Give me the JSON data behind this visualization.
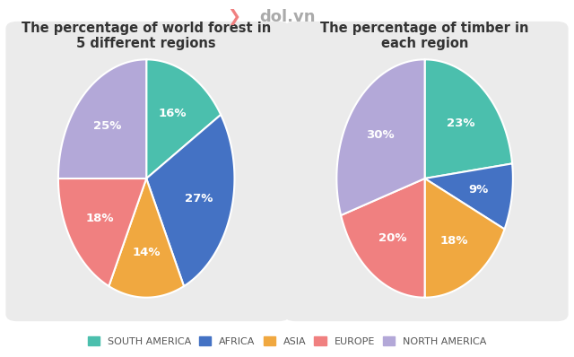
{
  "title1": "The percentage of world forest in\n5 different regions",
  "title2": "The percentage of timber in\neach region",
  "regions": [
    "SOUTH AMERICA",
    "AFRICA",
    "ASIA",
    "EUROPE",
    "NORTH AMERICA"
  ],
  "colors": [
    "#4bbfad",
    "#4472c4",
    "#f0a840",
    "#f08080",
    "#b3a8d8"
  ],
  "forest_values": [
    16,
    27,
    14,
    18,
    25
  ],
  "timber_values": [
    23,
    9,
    18,
    20,
    30
  ],
  "forest_startangle": 90,
  "timber_startangle": 90,
  "bg_color": "#ffffff",
  "panel_color": "#ebebeb",
  "title_fontsize": 10.5,
  "label_fontsize": 9.5,
  "legend_fontsize": 8,
  "logo_color": "#aaaaaa",
  "logo_leaf_color": "#f08080"
}
